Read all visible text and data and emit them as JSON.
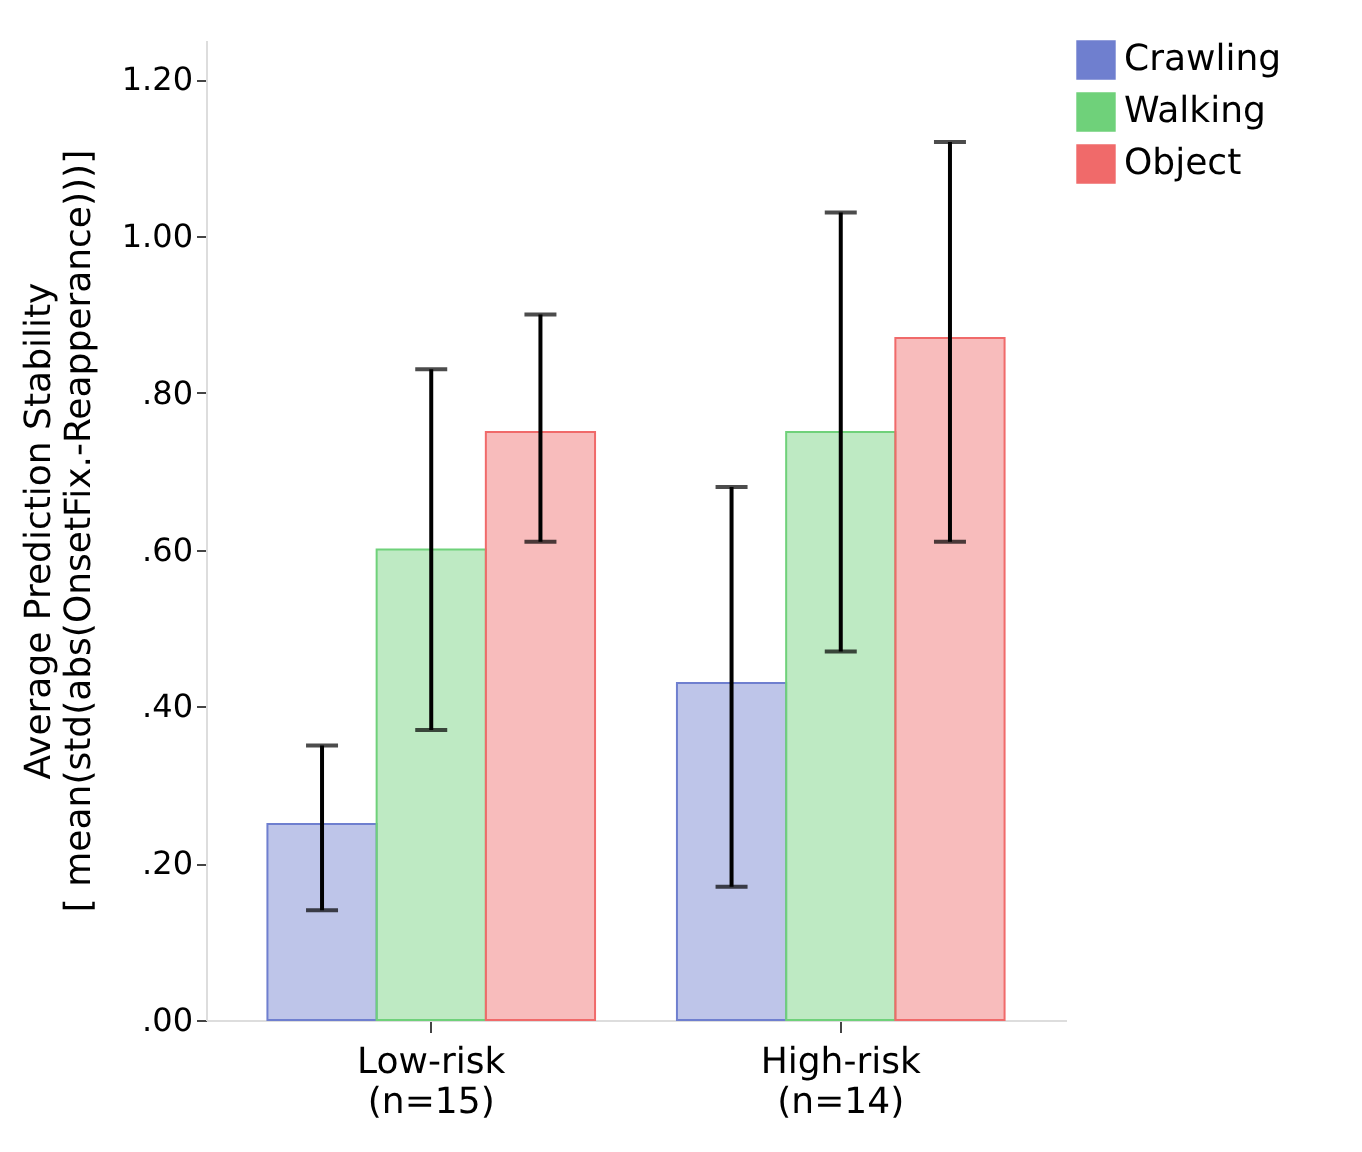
{
  "chart_data": {
    "type": "bar",
    "ylabel": "Average Prediction Stability\n[ mean(std(abs(OnsetFix.-Reapperance)))]",
    "categories": [
      "Low-risk\n(n=15)",
      "High-risk\n(n=14)"
    ],
    "series": [
      {
        "name": "Crawling",
        "color": "#6f7fcf",
        "values": [
          0.25,
          0.43
        ],
        "errors": [
          [
            0.14,
            0.35
          ],
          [
            0.17,
            0.68
          ]
        ]
      },
      {
        "name": "Walking",
        "color": "#6fd17a",
        "values": [
          0.6,
          0.75
        ],
        "errors": [
          [
            0.37,
            0.83
          ],
          [
            0.47,
            1.03
          ]
        ]
      },
      {
        "name": "Object",
        "color": "#f06a6a",
        "values": [
          0.75,
          0.87
        ],
        "errors": [
          [
            0.61,
            0.9
          ],
          [
            0.61,
            1.12
          ]
        ]
      }
    ],
    "ylim": [
      0,
      1.25
    ],
    "yticks": [
      {
        "value": 0,
        "label": ".00"
      },
      {
        "value": 0.2,
        "label": ".20"
      },
      {
        "value": 0.4,
        "label": ".40"
      },
      {
        "value": 0.6,
        "label": ".60"
      },
      {
        "value": 0.8,
        "label": ".80"
      },
      {
        "value": 1.0,
        "label": "1.00"
      },
      {
        "value": 1.2,
        "label": "1.20"
      }
    ],
    "legend": "top right",
    "grid": false
  }
}
